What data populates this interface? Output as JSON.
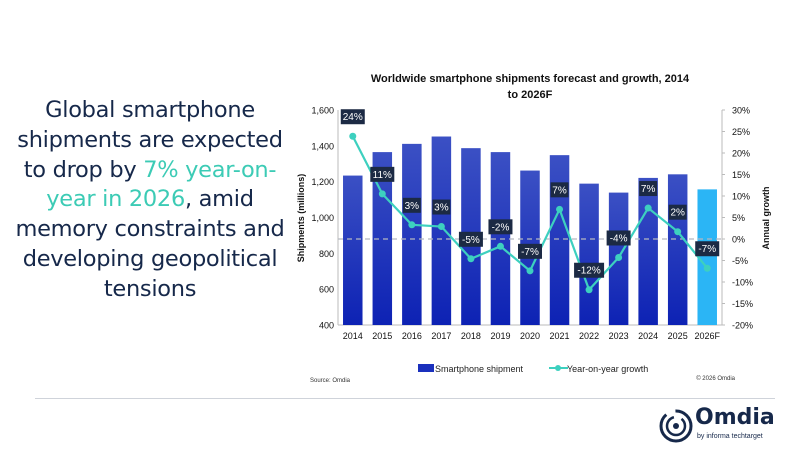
{
  "headline": {
    "before": "Global smartphone shipments are expected to drop by ",
    "highlight": "7% year-on-year in 2026",
    "after": ", amid memory constraints and developing geopolitical tensions"
  },
  "chart_data": {
    "type": "bar+line",
    "title_line1": "Worldwide smartphone shipments forecast and growth, 2014",
    "title_line2": "to 2026F",
    "categories": [
      "2014",
      "2015",
      "2016",
      "2017",
      "2018",
      "2019",
      "2020",
      "2021",
      "2022",
      "2023",
      "2024",
      "2025",
      "2026F"
    ],
    "series": [
      {
        "name": "Smartphone shipment",
        "axis": "left",
        "kind": "bar",
        "values": [
          1234,
          1365,
          1411,
          1452,
          1387,
          1365,
          1262,
          1348,
          1189,
          1139,
          1221,
          1241,
          1157
        ]
      },
      {
        "name": "Year-on-year growth",
        "axis": "right",
        "kind": "line",
        "values": [
          23.9,
          10.5,
          3.3,
          2.9,
          -4.6,
          -1.7,
          -7.4,
          6.9,
          -11.8,
          -4.3,
          7.2,
          1.7,
          -6.8
        ],
        "labels": [
          "24%",
          "11%",
          "3%",
          "3%",
          "-5%",
          "-2%",
          "-7%",
          "7%",
          "-12%",
          "-4%",
          "7%",
          "2%",
          "-7%"
        ]
      }
    ],
    "ylabel": "Shipments (millions)",
    "y2label": "Annual growth",
    "ylim": [
      400,
      1600
    ],
    "yticks": [
      "1,600",
      "1,400",
      "1,200",
      "1,000",
      "800",
      "600",
      "400"
    ],
    "y2lim": [
      -20,
      30
    ],
    "y2ticks": [
      "30%",
      "25%",
      "20%",
      "15%",
      "10%",
      "5%",
      "0%",
      "-5%",
      "-10%",
      "-15%",
      "-20%"
    ],
    "zero_line": "dashed",
    "grid": false,
    "legend_position": "bottom",
    "source": "Source: Omdia",
    "copyright": "© 2026 Omdia",
    "colors": {
      "bar_top": "#3b50c4",
      "bar_bottom": "#0d22b4",
      "forecast_bar": "#2bb5f5",
      "line": "#3dd0bf",
      "label_bg": "#1c2a44",
      "label_text": "#ffffff"
    }
  },
  "logo": {
    "word": "Omdia",
    "sub": "by informa techtarget"
  }
}
